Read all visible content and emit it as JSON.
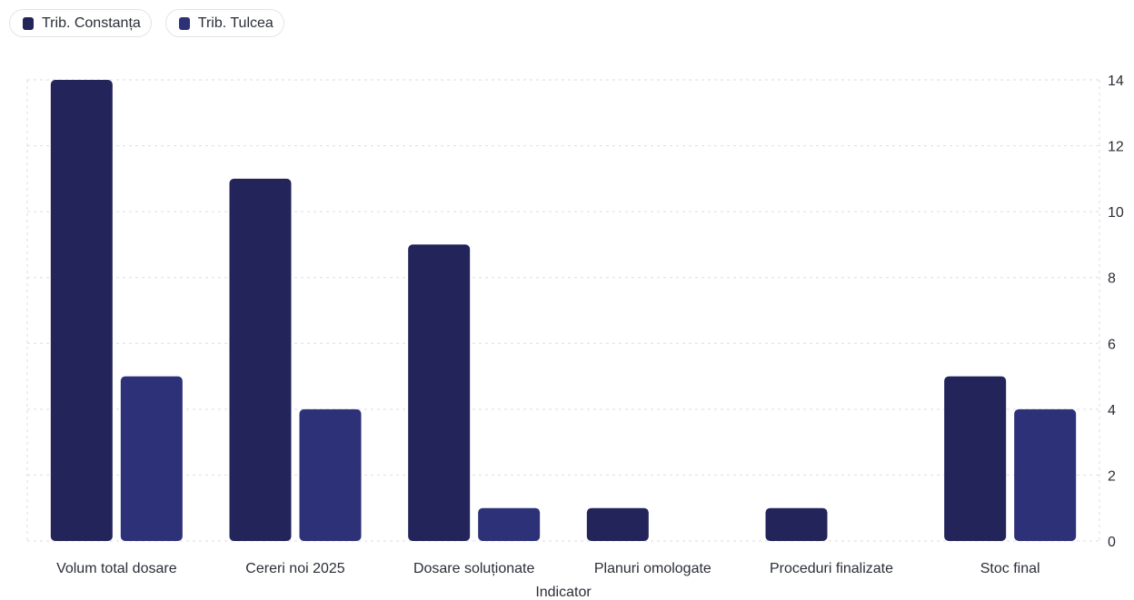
{
  "chart_data": {
    "type": "bar",
    "categories": [
      "Volum total dosare",
      "Cereri noi 2025",
      "Dosare soluționate",
      "Planuri omologate",
      "Proceduri finalizate",
      "Stoc final"
    ],
    "series": [
      {
        "name": "Trib. Constanța",
        "color": "#22245a",
        "values": [
          14,
          11,
          9,
          1,
          1,
          5
        ]
      },
      {
        "name": "Trib. Tulcea",
        "color": "#2d3178",
        "values": [
          5,
          4,
          1,
          0,
          0,
          4
        ]
      }
    ],
    "xlabel": "Indicator",
    "ylabel": "",
    "ylim": [
      0,
      14
    ],
    "yticks": [
      0,
      2,
      4,
      6,
      8,
      10,
      12,
      14
    ],
    "y_axis_side": "right",
    "grid": true,
    "legend_position": "top-left"
  }
}
